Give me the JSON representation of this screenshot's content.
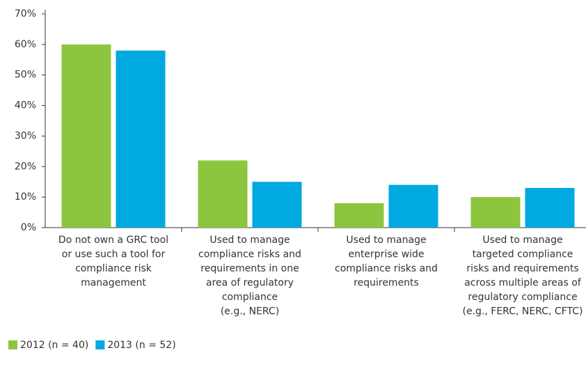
{
  "chart_data": {
    "type": "bar",
    "categories": [
      [
        "Do not own a GRC tool",
        "or use such a tool for",
        "compliance risk",
        "management"
      ],
      [
        "Used to manage",
        "compliance risks and",
        "requirements in one",
        "area of regulatory",
        "compliance",
        "(e.g., NERC)"
      ],
      [
        "Used to manage",
        "enterprise wide",
        "compliance risks and",
        "requirements"
      ],
      [
        "Used to manage",
        "targeted compliance",
        "risks and requirements",
        "across multiple areas of",
        "regulatory compliance",
        "(e.g., FERC, NERC, CFTC)"
      ]
    ],
    "series": [
      {
        "name": "2012 (n = 40)",
        "color": "#8cc63f",
        "values": [
          60,
          22,
          8,
          10
        ]
      },
      {
        "name": "2013 (n = 52)",
        "color": "#00a9e0",
        "values": [
          58,
          15,
          14,
          13
        ]
      }
    ],
    "ylim": [
      0,
      70
    ],
    "yticks": [
      {
        "value": 0,
        "label": "0%"
      },
      {
        "value": 10,
        "label": "10%"
      },
      {
        "value": 20,
        "label": "20%"
      },
      {
        "value": 30,
        "label": "30%"
      },
      {
        "value": 40,
        "label": "40%"
      },
      {
        "value": 50,
        "label": "50%"
      },
      {
        "value": 60,
        "label": "60%"
      },
      {
        "value": 70,
        "label": "70%"
      }
    ],
    "legend": "bottom-left"
  }
}
